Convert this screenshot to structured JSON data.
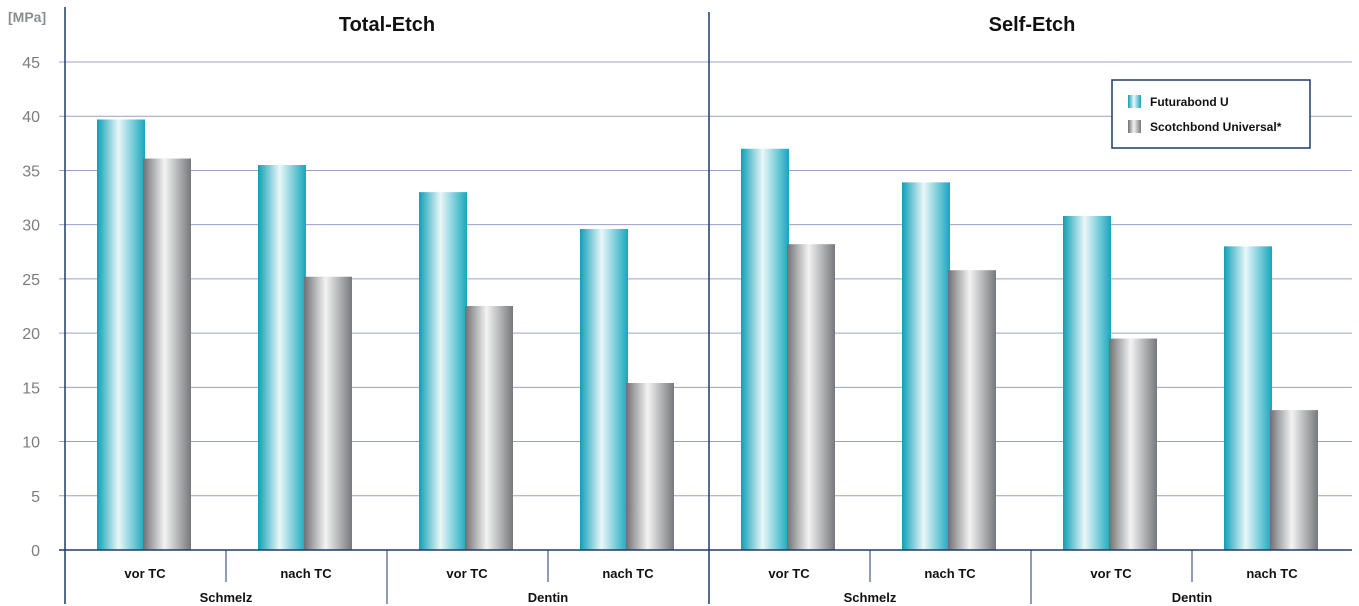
{
  "chart_data": {
    "type": "bar",
    "ylabel": "[MPa]",
    "ylim": [
      0,
      45
    ],
    "yticks": [
      0,
      5,
      10,
      15,
      20,
      25,
      30,
      35,
      40,
      45
    ],
    "grid": true,
    "legend_position": "top-right",
    "panels": [
      {
        "title": "Total-Etch",
        "groups": [
          {
            "label": "Schmelz",
            "categories": [
              "vor TC",
              "nach TC"
            ]
          },
          {
            "label": "Dentin",
            "categories": [
              "vor TC",
              "nach TC"
            ]
          }
        ],
        "series": [
          {
            "name": "Futurabond U",
            "values": [
              39.7,
              35.5,
              33.0,
              29.6
            ]
          },
          {
            "name": "Scotchbond Universal*",
            "values": [
              36.1,
              25.2,
              22.5,
              15.4
            ]
          }
        ]
      },
      {
        "title": "Self-Etch",
        "groups": [
          {
            "label": "Schmelz",
            "categories": [
              "vor TC",
              "nach TC"
            ]
          },
          {
            "label": "Dentin",
            "categories": [
              "vor TC",
              "nach TC"
            ]
          }
        ],
        "series": [
          {
            "name": "Futurabond U",
            "values": [
              37.0,
              33.9,
              30.8,
              28.0
            ]
          },
          {
            "name": "Scotchbond Universal*",
            "values": [
              28.2,
              25.8,
              19.5,
              12.9
            ]
          }
        ]
      }
    ],
    "legend": [
      "Futurabond U",
      "Scotchbond Universal*"
    ],
    "colors": {
      "series1": "#1aa7bd",
      "series2": "#7d7f82",
      "axis": "#1f3a68",
      "grid": "#9aa0c8"
    }
  }
}
